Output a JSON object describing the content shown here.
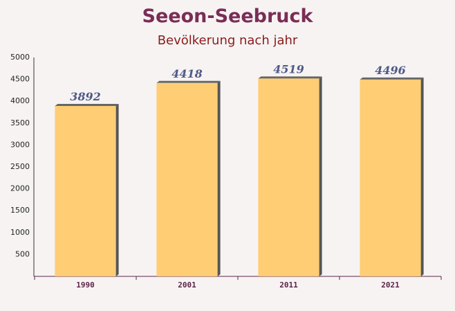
{
  "chart_data": {
    "type": "bar",
    "title": "Seeon-Seebruck",
    "subtitle": "Bevölkerung nach jahr",
    "categories": [
      "1990",
      "2001",
      "2011",
      "2021"
    ],
    "values": [
      3892,
      4418,
      4519,
      4496
    ],
    "color": "#ffc966",
    "ylim": [
      0,
      5000
    ],
    "yticks": [
      500,
      1000,
      1500,
      2000,
      2500,
      3000,
      3500,
      4000,
      4500,
      5000
    ],
    "grid": false
  }
}
